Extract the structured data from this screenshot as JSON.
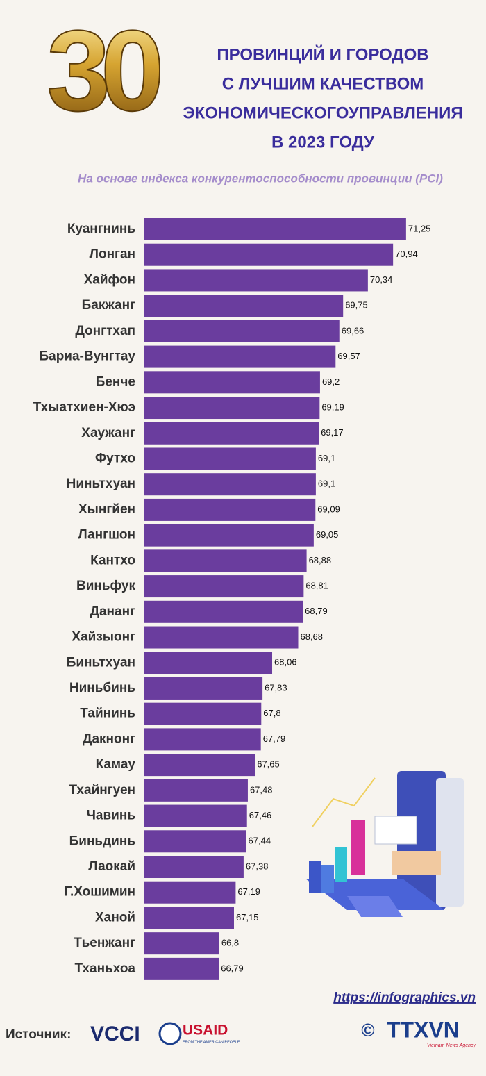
{
  "chart_data": {
    "type": "bar",
    "orientation": "horizontal",
    "big_number": "30",
    "title_lines": [
      "ПРОВИНЦИЙ И ГОРОДОВ",
      "С ЛУЧШИМ КАЧЕСТВОМ",
      "ЭКОНОМИЧЕСКОГОУПРАВЛЕНИЯ",
      "В 2023 ГОДУ"
    ],
    "subtitle": "На основе индекса конкурентоспособности провинции (PCI)",
    "categories": [
      "Куангнинь",
      "Лонган",
      "Хайфон",
      "Бакжанг",
      "Донгтхап",
      "Бариа-Вунгтау",
      "Бенче",
      "Тхыатхиен-Хюэ",
      "Хаужанг",
      "Футхо",
      "Ниньтхуан",
      "Хынгйен",
      "Лангшон",
      "Кантхо",
      "Виньфук",
      "Дананг",
      "Хайзыонг",
      "Биньтхуан",
      "Ниньбинь",
      "Тайнинь",
      "Дакнонг",
      "Камау",
      "Тхайнгуен",
      "Чавинь",
      "Биньдинь",
      "Лаокай",
      "Г.Хошимин",
      "Ханой",
      "Тьенжанг",
      "Тханьхоа"
    ],
    "values": [
      71.25,
      70.94,
      70.34,
      69.75,
      69.66,
      69.57,
      69.2,
      69.19,
      69.17,
      69.1,
      69.1,
      69.09,
      69.05,
      68.88,
      68.81,
      68.79,
      68.68,
      68.06,
      67.83,
      67.8,
      67.79,
      67.65,
      67.48,
      67.46,
      67.44,
      67.38,
      67.19,
      67.15,
      66.8,
      66.79
    ],
    "value_labels": [
      "71,25",
      "70,94",
      "70,34",
      "69,75",
      "69,66",
      "69,57",
      "69,2",
      "69,19",
      "69,17",
      "69,1",
      "69,1",
      "69,09",
      "69,05",
      "68,88",
      "68,81",
      "68,79",
      "68,68",
      "68,06",
      "67,83",
      "67,8",
      "67,79",
      "67,65",
      "67,48",
      "67,46",
      "67,44",
      "67,38",
      "67,19",
      "67,15",
      "66,8",
      "66,79"
    ],
    "color": "#6a3d9e",
    "xlim": [
      65,
      71.5
    ],
    "url": "https://infographics.vn",
    "source_label": "Источник:",
    "logos": [
      "VCCI",
      "USAID",
      "FROM THE AMERICAN PEOPLE",
      "TTXVN",
      "Vietnam News Agency"
    ]
  }
}
